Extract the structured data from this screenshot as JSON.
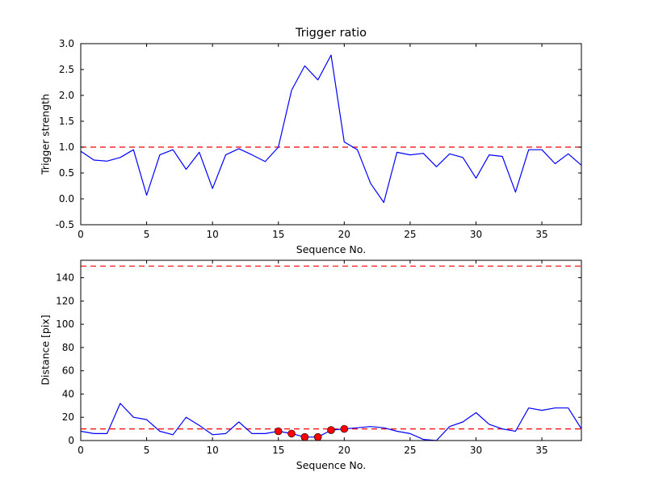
{
  "figure": {
    "background": "#ffffff",
    "line_color": "#0000ff",
    "threshold_color": "#ff0000",
    "marker_face_color": "#ff0000",
    "marker_edge_color": "#000000"
  },
  "chart_data": [
    {
      "type": "line",
      "title": "Trigger ratio",
      "xlabel": "Sequence No.",
      "ylabel": "Trigger strength",
      "xlim": [
        0,
        38
      ],
      "ylim": [
        -0.5,
        3.0
      ],
      "grid": false,
      "legend": "none",
      "xticks": {
        "values": [
          0,
          5,
          10,
          15,
          20,
          25,
          30,
          35
        ],
        "labels": [
          "0",
          "5",
          "10",
          "15",
          "20",
          "25",
          "30",
          "35"
        ]
      },
      "yticks": {
        "values": [
          -0.5,
          0.0,
          0.5,
          1.0,
          1.5,
          2.0,
          2.5,
          3.0
        ],
        "labels": [
          "-0.5",
          "0.0",
          "0.5",
          "1.0",
          "1.5",
          "2.0",
          "2.5",
          "3.0"
        ]
      },
      "thresholds": [
        {
          "y": 1.0,
          "color": "#ff0000",
          "style": "dashed"
        }
      ],
      "series": [
        {
          "name": "trigger-strength",
          "color": "#0000ff",
          "x": [
            0,
            1,
            2,
            3,
            4,
            5,
            6,
            7,
            8,
            9,
            10,
            11,
            12,
            13,
            14,
            15,
            16,
            17,
            18,
            19,
            20,
            21,
            22,
            23,
            24,
            25,
            26,
            27,
            28,
            29,
            30,
            31,
            32,
            33,
            34,
            35,
            36,
            37,
            38
          ],
          "values": [
            0.92,
            0.75,
            0.73,
            0.8,
            0.95,
            0.07,
            0.85,
            0.95,
            0.57,
            0.9,
            0.2,
            0.85,
            0.97,
            0.85,
            0.72,
            1.0,
            2.1,
            2.57,
            2.3,
            2.78,
            1.1,
            0.95,
            0.3,
            -0.07,
            0.9,
            0.85,
            0.88,
            0.62,
            0.87,
            0.8,
            0.4,
            0.85,
            0.82,
            0.13,
            0.95,
            0.95,
            0.68,
            0.87,
            0.65
          ]
        }
      ],
      "markers": null
    },
    {
      "type": "line",
      "title": "",
      "xlabel": "Sequence No.",
      "ylabel": "Distance [pix]",
      "xlim": [
        0,
        38
      ],
      "ylim": [
        0,
        155
      ],
      "grid": false,
      "legend": "none",
      "xticks": {
        "values": [
          0,
          5,
          10,
          15,
          20,
          25,
          30,
          35
        ],
        "labels": [
          "0",
          "5",
          "10",
          "15",
          "20",
          "25",
          "30",
          "35"
        ]
      },
      "yticks": {
        "values": [
          0,
          20,
          40,
          60,
          80,
          100,
          120,
          140
        ],
        "labels": [
          "0",
          "20",
          "40",
          "60",
          "80",
          "100",
          "120",
          "140"
        ]
      },
      "thresholds": [
        {
          "y": 150,
          "color": "#ff0000",
          "style": "dashed"
        },
        {
          "y": 10,
          "color": "#ff0000",
          "style": "dashed"
        }
      ],
      "series": [
        {
          "name": "distance",
          "color": "#0000ff",
          "x": [
            0,
            1,
            2,
            3,
            4,
            5,
            6,
            7,
            8,
            9,
            10,
            11,
            12,
            13,
            14,
            15,
            16,
            17,
            18,
            19,
            20,
            21,
            22,
            23,
            24,
            25,
            26,
            27,
            28,
            29,
            30,
            31,
            32,
            33,
            34,
            35,
            36,
            37,
            38
          ],
          "values": [
            8,
            6,
            6,
            32,
            20,
            18,
            8,
            5,
            20,
            13,
            5,
            6,
            16,
            6,
            6,
            8,
            6,
            3,
            3,
            9,
            10,
            11,
            12,
            11,
            8,
            6,
            1,
            0,
            12,
            16,
            24,
            14,
            10,
            8,
            28,
            26,
            28,
            28,
            10
          ]
        }
      ],
      "markers": {
        "name": "triggered-points",
        "color": "#ff0000",
        "x": [
          15,
          16,
          17,
          18,
          19,
          20
        ],
        "values": [
          8,
          6,
          3,
          3,
          9,
          10
        ]
      }
    }
  ]
}
